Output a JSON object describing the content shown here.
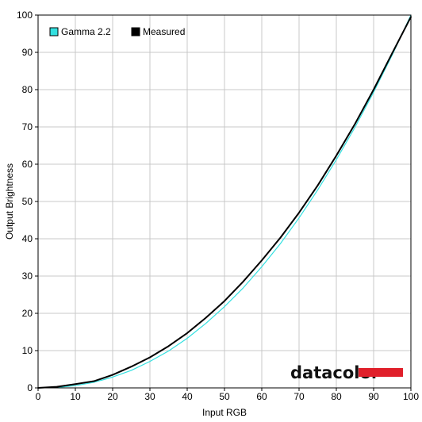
{
  "chart_data": {
    "type": "line",
    "title": "",
    "xlabel": "Input RGB",
    "ylabel": "Output Brightness",
    "xlim": [
      0,
      100
    ],
    "ylim": [
      0,
      100
    ],
    "x_ticks": [
      0,
      10,
      20,
      30,
      40,
      50,
      60,
      70,
      80,
      90,
      100
    ],
    "y_ticks": [
      0,
      10,
      20,
      30,
      40,
      50,
      60,
      70,
      80,
      90,
      100
    ],
    "grid": true,
    "legend_position": "top-left",
    "series": [
      {
        "name": "Gamma 2.2",
        "color": "#33e0e0",
        "x": [
          0,
          5,
          10,
          15,
          20,
          25,
          30,
          35,
          40,
          45,
          50,
          55,
          60,
          65,
          70,
          75,
          80,
          85,
          90,
          95,
          100
        ],
        "values": [
          0,
          0.1,
          0.6,
          1.5,
          2.9,
          4.7,
          7.1,
          9.9,
          13.3,
          17.3,
          21.8,
          26.8,
          32.5,
          38.7,
          45.6,
          53.1,
          61.2,
          69.9,
          79.3,
          89.3,
          100
        ]
      },
      {
        "name": "Measured",
        "color": "#000000",
        "x": [
          0,
          5,
          10,
          15,
          20,
          25,
          30,
          35,
          40,
          45,
          50,
          55,
          60,
          65,
          70,
          75,
          80,
          85,
          90,
          95,
          100
        ],
        "values": [
          0,
          0.3,
          1.0,
          1.8,
          3.5,
          5.7,
          8.2,
          11.2,
          14.7,
          18.8,
          23.3,
          28.5,
          34.2,
          40.3,
          47.0,
          54.3,
          62.3,
          70.8,
          80.0,
          89.8,
          99.5
        ]
      }
    ],
    "watermark": {
      "text": "datacolor",
      "bar_color": "#e01f2a"
    }
  }
}
